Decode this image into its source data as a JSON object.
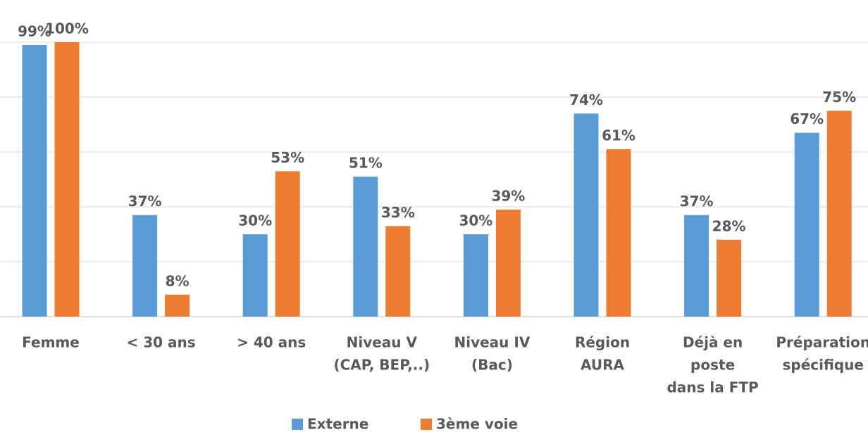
{
  "chart_data": {
    "type": "bar",
    "categories": [
      [
        "Femme"
      ],
      [
        "< 30 ans"
      ],
      [
        "> 40 ans"
      ],
      [
        "Niveau V",
        "(CAP, BEP,..)"
      ],
      [
        "Niveau IV",
        "(Bac)"
      ],
      [
        "Région",
        "AURA"
      ],
      [
        "Déjà en",
        "poste",
        "dans la FTP"
      ],
      [
        "Préparation",
        "spécifique"
      ]
    ],
    "series": [
      {
        "name": "Externe",
        "color": "#5b9bd5",
        "values": [
          99,
          37,
          30,
          51,
          30,
          74,
          37,
          67
        ],
        "value_labels": [
          "99%",
          "37%",
          "30%",
          "51%",
          "30%",
          "74%",
          "37%",
          "67%"
        ]
      },
      {
        "name": "3ème voie",
        "color": "#ed7d31",
        "values": [
          100,
          8,
          53,
          33,
          39,
          61,
          28,
          75
        ],
        "value_labels": [
          "100%",
          "8%",
          "53%",
          "33%",
          "39%",
          "61%",
          "28%",
          "75%"
        ]
      }
    ],
    "ylim": [
      0,
      100
    ],
    "yticks": [
      0,
      20,
      40,
      60,
      80,
      100
    ],
    "grid": true,
    "legend": "bottom"
  }
}
